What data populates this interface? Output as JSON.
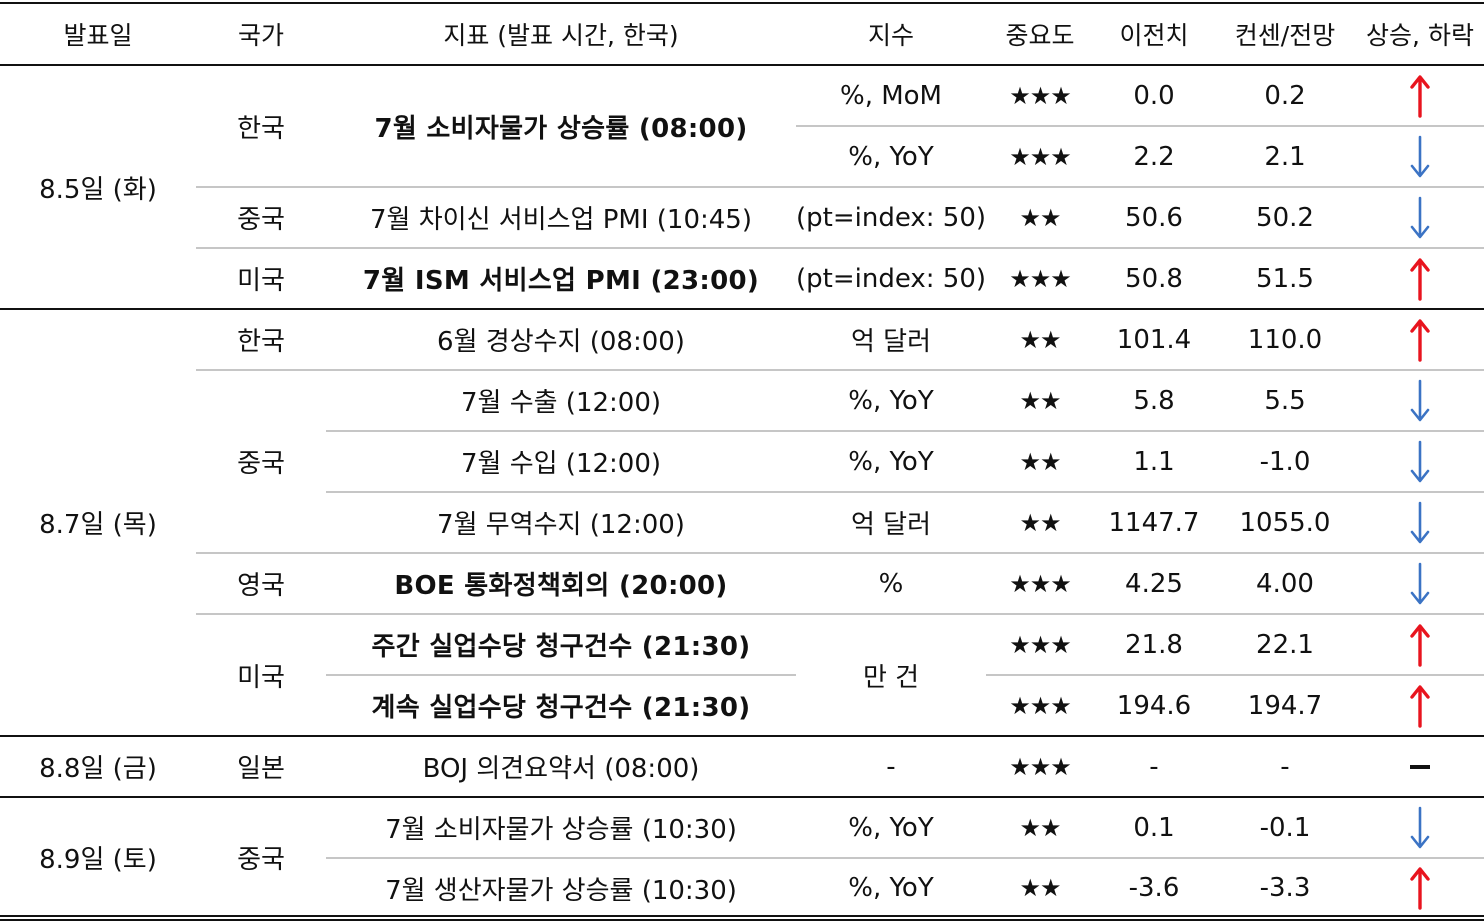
{
  "headers": {
    "date": "발표일",
    "country": "국가",
    "indicator": "지표 (발표 시간, 한국)",
    "unit": "지수",
    "importance": "중요도",
    "previous": "이전치",
    "consensus": "컨센/전망",
    "direction": "상승, 하락"
  },
  "colors": {
    "up": "#e8141e",
    "down": "#3b73c4",
    "flat": "#111111"
  },
  "groups": [
    {
      "date": "8.5일 (화)",
      "countries": [
        "한국",
        "중국",
        "미국"
      ]
    },
    {
      "date": "8.7일 (목)",
      "countries": [
        "한국",
        "중국",
        "영국",
        "미국"
      ]
    },
    {
      "date": "8.8일 (금)",
      "countries": [
        "일본"
      ]
    },
    {
      "date": "8.9일 (토)",
      "countries": [
        "중국"
      ]
    }
  ],
  "rows": [
    {
      "indicator": "7월 소비자물가 상승률 (08:00)",
      "unit": "%, MoM",
      "importance": "★★★",
      "previous": "0.0",
      "consensus": "0.2",
      "direction": "up"
    },
    {
      "indicator": "",
      "unit": "%, YoY",
      "importance": "★★★",
      "previous": "2.2",
      "consensus": "2.1",
      "direction": "down"
    },
    {
      "indicator": "7월 차이신 서비스업 PMI (10:45)",
      "unit": "(pt=index: 50)",
      "importance": "★★",
      "previous": "50.6",
      "consensus": "50.2",
      "direction": "down"
    },
    {
      "indicator": "7월 ISM 서비스업 PMI (23:00)",
      "unit": "(pt=index: 50)",
      "importance": "★★★",
      "previous": "50.8",
      "consensus": "51.5",
      "direction": "up"
    },
    {
      "indicator": "6월 경상수지 (08:00)",
      "unit": "억 달러",
      "importance": "★★",
      "previous": "101.4",
      "consensus": "110.0",
      "direction": "up"
    },
    {
      "indicator": "7월 수출 (12:00)",
      "unit": "%, YoY",
      "importance": "★★",
      "previous": "5.8",
      "consensus": "5.5",
      "direction": "down"
    },
    {
      "indicator": "7월 수입 (12:00)",
      "unit": "%, YoY",
      "importance": "★★",
      "previous": "1.1",
      "consensus": "-1.0",
      "direction": "down"
    },
    {
      "indicator": "7월 무역수지 (12:00)",
      "unit": "억 달러",
      "importance": "★★",
      "previous": "1147.7",
      "consensus": "1055.0",
      "direction": "down"
    },
    {
      "indicator": "BOE 통화정책회의 (20:00)",
      "unit": "%",
      "importance": "★★★",
      "previous": "4.25",
      "consensus": "4.00",
      "direction": "down"
    },
    {
      "indicator": "주간 실업수당 청구건수 (21:30)",
      "unit": "만 건",
      "importance": "★★★",
      "previous": "21.8",
      "consensus": "22.1",
      "direction": "up"
    },
    {
      "indicator": "계속 실업수당 청구건수 (21:30)",
      "unit": "",
      "importance": "★★★",
      "previous": "194.6",
      "consensus": "194.7",
      "direction": "up"
    },
    {
      "indicator": "BOJ 의견요약서 (08:00)",
      "unit": "-",
      "importance": "★★★",
      "previous": "-",
      "consensus": "-",
      "direction": "flat"
    },
    {
      "indicator": "7월 소비자물가 상승률 (10:30)",
      "unit": "%, YoY",
      "importance": "★★",
      "previous": "0.1",
      "consensus": "-0.1",
      "direction": "down"
    },
    {
      "indicator": "7월 생산자물가 상승률 (10:30)",
      "unit": "%, YoY",
      "importance": "★★",
      "previous": "-3.6",
      "consensus": "-3.3",
      "direction": "up"
    }
  ]
}
